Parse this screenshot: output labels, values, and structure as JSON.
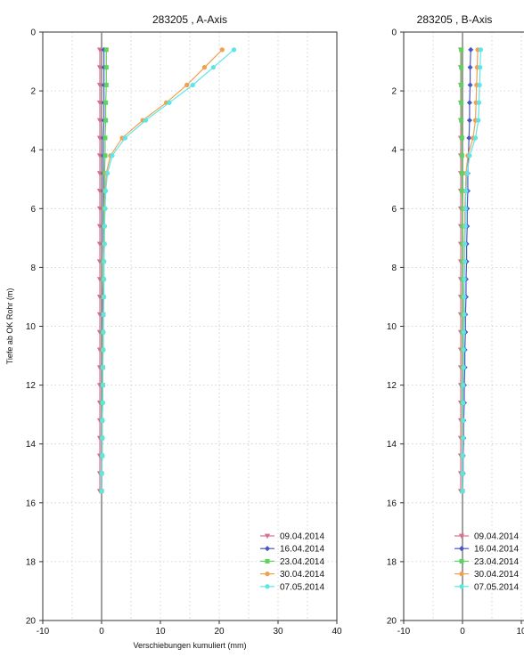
{
  "chart_data": [
    {
      "type": "line",
      "title": "283205 , A-Axis",
      "xlabel": "Verschiebungen kumuliert (mm)",
      "ylabel": "Tiefe ab OK Rohr (m)",
      "xlim": [
        -10,
        40
      ],
      "ylim": [
        20,
        0
      ],
      "y_inverted": true,
      "xticks": [
        -10,
        0,
        10,
        20,
        30,
        40
      ],
      "yticks": [
        0,
        2,
        4,
        6,
        8,
        10,
        12,
        14,
        16,
        18,
        20
      ],
      "grid": true,
      "legend_position": "bottom-right",
      "depth": [
        0.6,
        1.2,
        1.8,
        2.4,
        3.0,
        3.6,
        4.2,
        4.8,
        5.4,
        6.0,
        6.6,
        7.2,
        7.8,
        8.4,
        9.0,
        9.6,
        10.2,
        10.8,
        11.4,
        12.0,
        12.6,
        13.2,
        13.8,
        14.4,
        15.0,
        15.6
      ],
      "series": [
        {
          "name": "09.04.2014",
          "color": "#d9708c",
          "marker": "triangle-down",
          "values": [
            -0.3,
            -0.3,
            -0.3,
            -0.3,
            -0.3,
            -0.3,
            -0.3,
            -0.3,
            -0.3,
            -0.3,
            -0.3,
            -0.3,
            -0.3,
            -0.3,
            -0.3,
            -0.3,
            -0.3,
            -0.3,
            -0.3,
            -0.3,
            -0.3,
            -0.3,
            -0.3,
            -0.3,
            -0.3,
            -0.3
          ]
        },
        {
          "name": "16.04.2014",
          "color": "#4a55c8",
          "marker": "diamond",
          "values": [
            0.4,
            0.4,
            0.4,
            0.4,
            0.4,
            0.3,
            0.3,
            0.3,
            0.3,
            0.3,
            0.3,
            0.3,
            0.3,
            0.3,
            0.2,
            0.2,
            0.2,
            0.2,
            0.2,
            0.2,
            0.1,
            0.1,
            0.1,
            0.1,
            0.0,
            0.0
          ]
        },
        {
          "name": "23.04.2014",
          "color": "#5fd35f",
          "marker": "square",
          "values": [
            0.8,
            0.8,
            0.8,
            0.7,
            0.7,
            0.6,
            0.6,
            0.5,
            0.5,
            0.4,
            0.4,
            0.4,
            0.3,
            0.3,
            0.3,
            0.3,
            0.2,
            0.2,
            0.2,
            0.2,
            0.1,
            0.1,
            0.1,
            0.1,
            0.0,
            0.0
          ]
        },
        {
          "name": "30.04.2014",
          "color": "#f0a050",
          "marker": "circle",
          "values": [
            20.5,
            17.5,
            14.5,
            11.0,
            7.0,
            3.5,
            1.5,
            0.8,
            0.6,
            0.5,
            0.5,
            0.4,
            0.4,
            0.4,
            0.3,
            0.3,
            0.3,
            0.2,
            0.2,
            0.2,
            0.2,
            0.1,
            0.1,
            0.1,
            0.0,
            0.0
          ]
        },
        {
          "name": "07.05.2014",
          "color": "#5ee6e6",
          "marker": "circle",
          "values": [
            22.5,
            19.0,
            15.5,
            11.5,
            7.5,
            4.0,
            1.8,
            1.0,
            0.7,
            0.6,
            0.5,
            0.5,
            0.4,
            0.4,
            0.4,
            0.3,
            0.3,
            0.3,
            0.2,
            0.2,
            0.2,
            0.1,
            0.1,
            0.1,
            0.0,
            0.0
          ]
        }
      ]
    },
    {
      "type": "line",
      "title": "283205 , B-Axis",
      "ylabel": "",
      "xlim": [
        -10,
        40
      ],
      "ylim": [
        20,
        0
      ],
      "y_inverted": true,
      "xticks": [
        -10,
        0,
        10
      ],
      "xtick_labels": [
        "-10",
        "0",
        "10"
      ],
      "yticks": [
        0,
        2,
        4,
        6,
        8,
        10,
        12,
        14,
        16,
        18,
        20
      ],
      "grid": true,
      "legend_position": "bottom-right",
      "depth": [
        0.6,
        1.2,
        1.8,
        2.4,
        3.0,
        3.6,
        4.2,
        4.8,
        5.4,
        6.0,
        6.6,
        7.2,
        7.8,
        8.4,
        9.0,
        9.6,
        10.2,
        10.8,
        11.4,
        12.0,
        12.6,
        13.2,
        13.8,
        14.4,
        15.0,
        15.6
      ],
      "series": [
        {
          "name": "09.04.2014",
          "color": "#d9708c",
          "marker": "triangle-down",
          "values": [
            -0.3,
            -0.3,
            -0.3,
            -0.3,
            -0.3,
            -0.3,
            -0.3,
            -0.3,
            -0.3,
            -0.3,
            -0.3,
            -0.3,
            -0.3,
            -0.3,
            -0.3,
            -0.3,
            -0.3,
            -0.3,
            -0.3,
            -0.3,
            -0.3,
            -0.3,
            -0.3,
            -0.3,
            -0.3,
            -0.3
          ]
        },
        {
          "name": "16.04.2014",
          "color": "#4a55c8",
          "marker": "diamond",
          "values": [
            1.4,
            1.3,
            1.3,
            1.2,
            1.2,
            1.1,
            1.0,
            0.9,
            0.9,
            0.8,
            0.8,
            0.7,
            0.7,
            0.6,
            0.6,
            0.5,
            0.5,
            0.4,
            0.4,
            0.3,
            0.3,
            0.2,
            0.2,
            0.1,
            0.1,
            0.0
          ]
        },
        {
          "name": "23.04.2014",
          "color": "#5fd35f",
          "marker": "square",
          "values": [
            -0.2,
            -0.2,
            -0.2,
            -0.2,
            -0.2,
            -0.1,
            -0.1,
            -0.1,
            -0.1,
            0.0,
            0.0,
            0.0,
            0.0,
            0.0,
            0.0,
            0.0,
            0.0,
            0.0,
            0.0,
            0.0,
            0.0,
            0.0,
            0.0,
            0.0,
            0.0,
            0.0
          ]
        },
        {
          "name": "30.04.2014",
          "color": "#f0a050",
          "marker": "circle",
          "values": [
            2.6,
            2.5,
            2.4,
            2.3,
            2.2,
            1.8,
            0.9,
            0.6,
            0.5,
            0.4,
            0.4,
            0.3,
            0.3,
            0.3,
            0.2,
            0.2,
            0.2,
            0.1,
            0.1,
            0.1,
            0.1,
            0.0,
            0.0,
            0.0,
            0.0,
            0.0
          ]
        },
        {
          "name": "07.05.2014",
          "color": "#5ee6e6",
          "marker": "circle",
          "values": [
            3.1,
            3.0,
            2.9,
            2.8,
            2.7,
            2.2,
            1.2,
            0.8,
            0.6,
            0.5,
            0.5,
            0.4,
            0.4,
            0.3,
            0.3,
            0.3,
            0.2,
            0.2,
            0.2,
            0.1,
            0.1,
            0.1,
            0.1,
            0.0,
            0.0,
            0.0
          ]
        }
      ]
    }
  ]
}
